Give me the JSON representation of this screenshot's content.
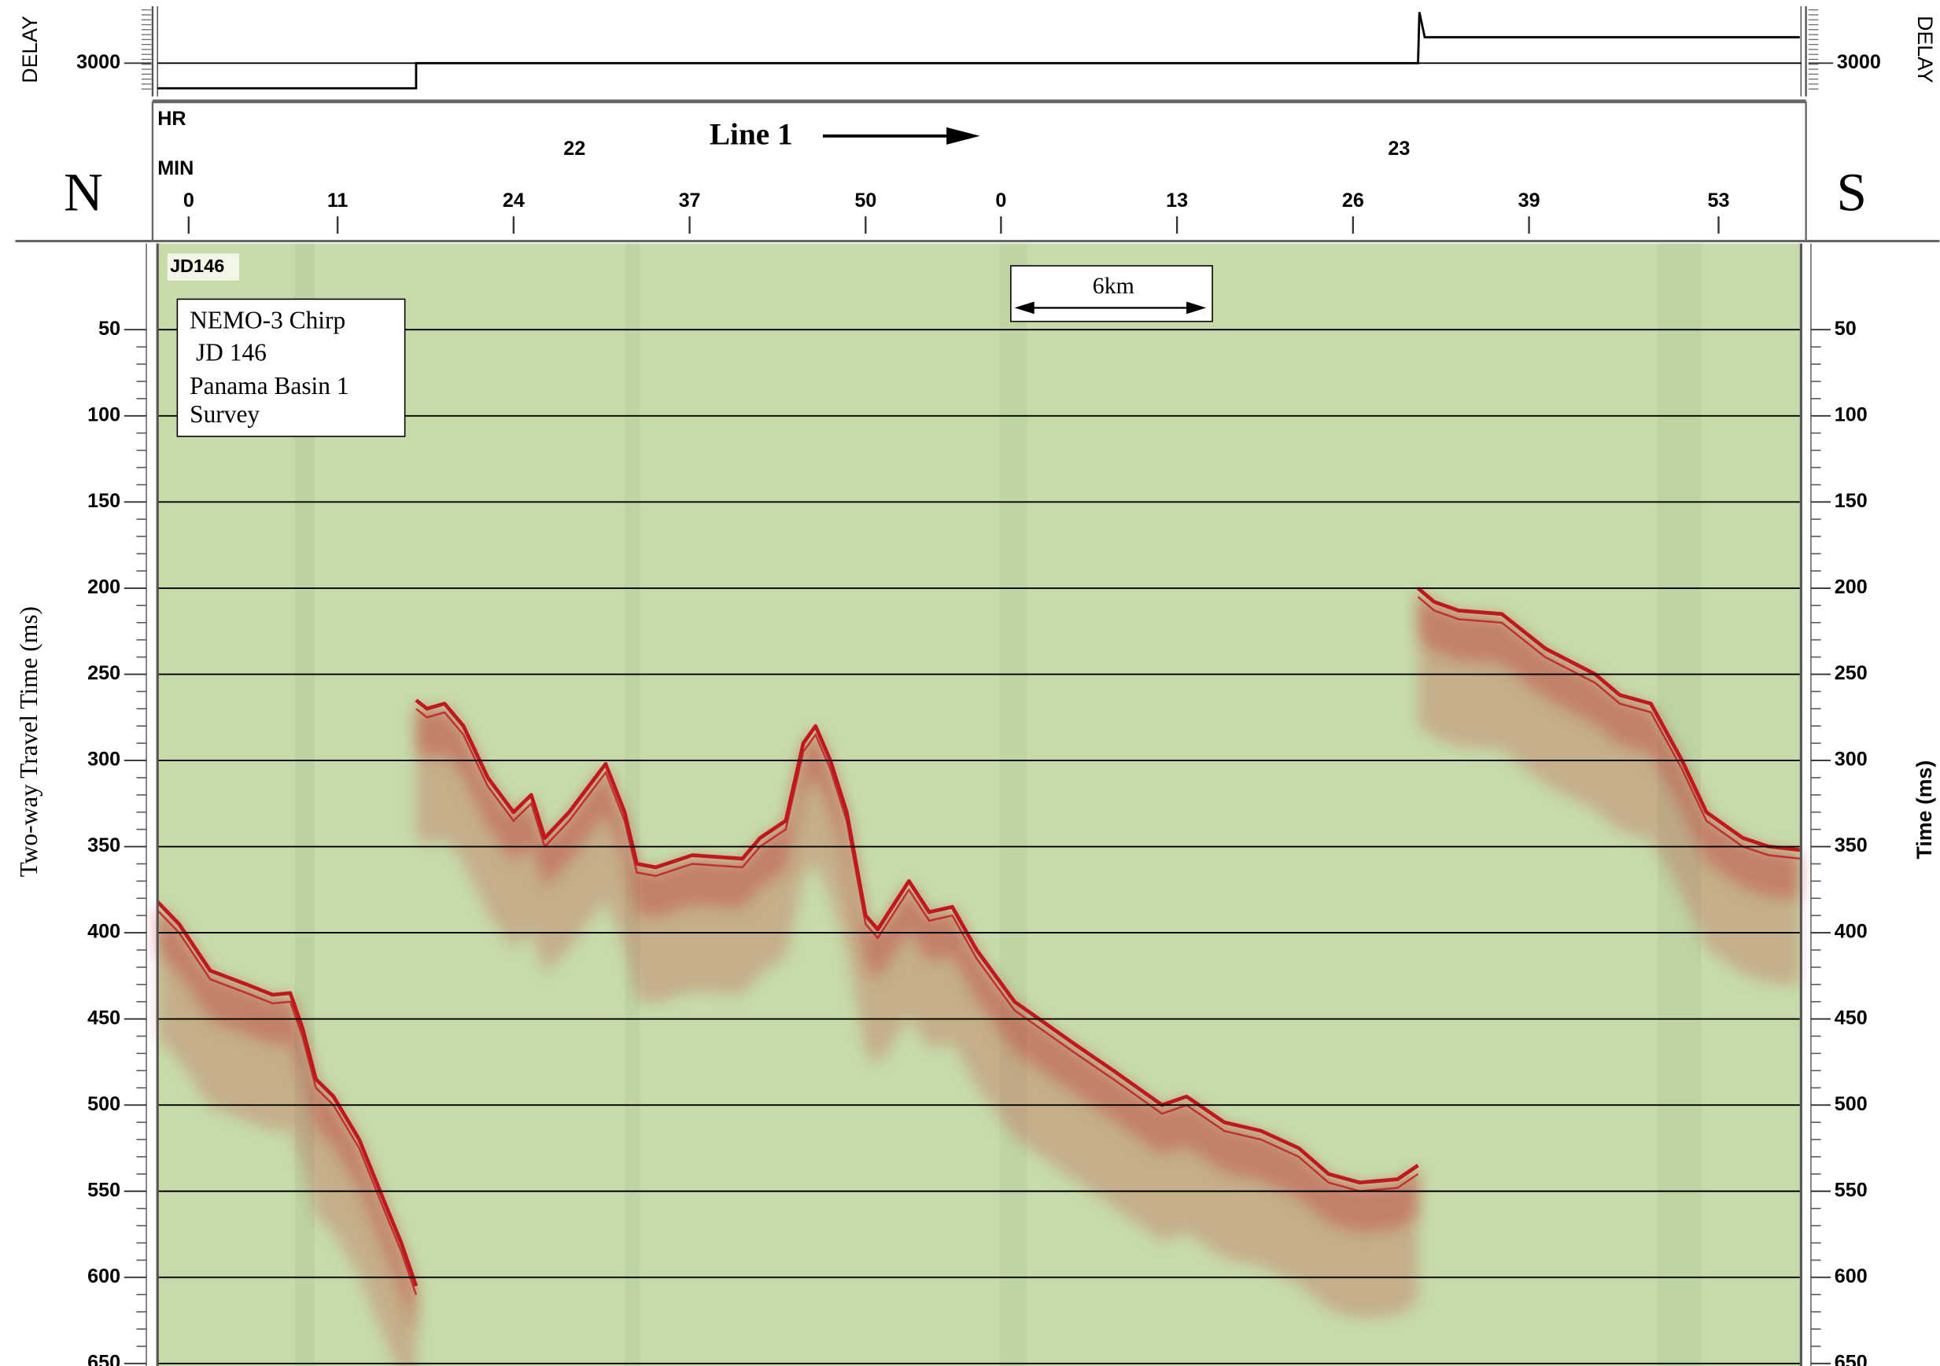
{
  "chart_data": {
    "type": "line",
    "north_label": "N",
    "south_label": "S",
    "line_label": "Line 1",
    "x_hour_label": "HR",
    "x_minute_label": "MIN",
    "ylabel": "Two-way Travel Time (ms)",
    "y2label": "Time (ms)",
    "stamp": "JD146",
    "scale_bar": "6km",
    "info_box": [
      "NEMO-3 Chirp",
      "JD 146",
      "Panama Basin 1",
      "Survey"
    ],
    "background": "#c6dba9",
    "color": "#c0181c",
    "grid": true,
    "xlim": [
      -2.3,
      119
    ],
    "xticks": [
      0,
      11,
      24,
      37,
      50,
      {
        "value": 60,
        "label": "0"
      },
      {
        "value": 73,
        "label": "13"
      },
      {
        "value": 86,
        "label": "26"
      },
      {
        "value": 99,
        "label": "39"
      },
      {
        "value": 113,
        "label": "53"
      }
    ],
    "hour_marks": [
      {
        "hour": 22,
        "x": 28.5
      },
      {
        "hour": 23,
        "x": 89.4
      }
    ],
    "ylim": [
      0,
      650
    ],
    "yticks": [
      50,
      100,
      150,
      200,
      250,
      300,
      350,
      400,
      450,
      500,
      550,
      600,
      650
    ],
    "x": [
      -2.3,
      -0.7,
      1.6,
      4.3,
      6.2,
      7.5,
      8.4,
      9.4,
      10.7,
      12.6,
      14.4,
      15.7,
      16.8,
      16.8,
      16.8,
      17.6,
      18.9,
      20.3,
      22.1,
      24.0,
      25.3,
      26.3,
      28.1,
      30.8,
      32.2,
      33.1,
      34.5,
      37.2,
      40.9,
      42.2,
      44.1,
      45.4,
      46.3,
      47.4,
      48.6,
      50.0,
      50.9,
      53.2,
      54.7,
      56.4,
      58.2,
      61.0,
      63.7,
      65.5,
      68.3,
      71.9,
      73.7,
      76.5,
      79.2,
      82.0,
      84.2,
      86.5,
      89.3,
      90.8,
      90.8,
      90.8,
      92.0,
      93.8,
      97.0,
      100.2,
      103.9,
      105.7,
      108.0,
      110.3,
      112.1,
      114.8,
      116.7,
      119.0
    ],
    "values": [
      382,
      395,
      422,
      430,
      436,
      435,
      455,
      485,
      495,
      520,
      555,
      580,
      605,
      null,
      265,
      270,
      267,
      280,
      310,
      330,
      320,
      345,
      330,
      302,
      330,
      360,
      362,
      355,
      357,
      345,
      335,
      290,
      280,
      300,
      330,
      390,
      398,
      370,
      388,
      385,
      410,
      440,
      455,
      465,
      480,
      500,
      495,
      510,
      515,
      525,
      540,
      545,
      543,
      535,
      null,
      200,
      208,
      213,
      215,
      235,
      250,
      262,
      267,
      300,
      330,
      345,
      350,
      352
    ],
    "delay": {
      "label": "DELAY",
      "ylim": [
        2600,
        3720
      ],
      "yticks": [
        3000
      ],
      "x": [
        -2.3,
        16.8,
        16.8,
        90.8,
        90.9,
        91.3,
        119
      ],
      "values": [
        2660,
        2660,
        3000,
        3000,
        3690,
        3350,
        3350
      ]
    }
  }
}
